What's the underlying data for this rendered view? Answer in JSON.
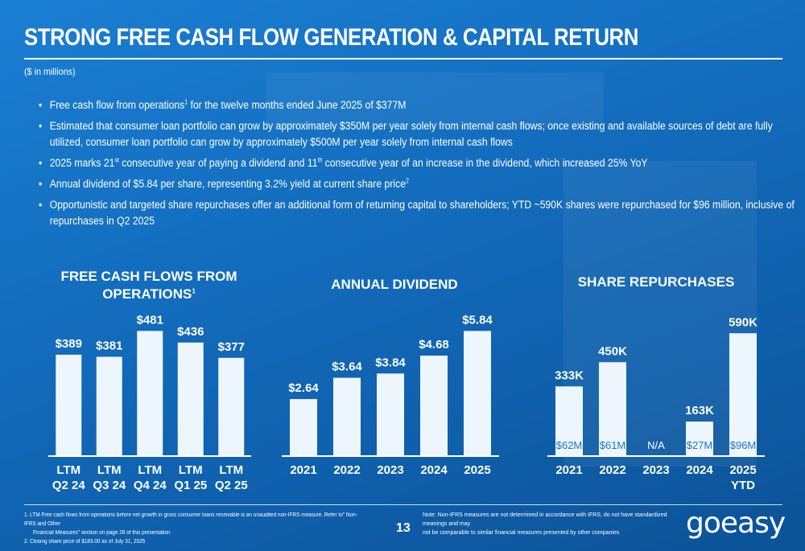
{
  "title": "STRONG FREE CASH FLOW GENERATION & CAPITAL RETURN",
  "subtitle": "($ in millions)",
  "bullets": [
    {
      "text": "Free cash flow from operations",
      "sup": "1",
      "tail": " for the twelve months ended June 2025 of $377M"
    },
    {
      "line1": "Estimated that consumer loan portfolio can grow by approximately $350M per year solely from internal cash flows; once existing and available sources of debt are fully",
      "line2": "utilized, consumer loan portfolio can grow by approximately $500M per year solely from internal cash flows"
    },
    {
      "p1": "2025 marks 21",
      "s1": "st",
      "p2": " consecutive year of paying a dividend and 11",
      "s2": "th",
      "p3": " consecutive year of an increase in the dividend, which increased 25% YoY"
    },
    {
      "text": "Annual dividend of $5.84 per share, representing 3.2% yield at current share price",
      "sup": "2"
    },
    {
      "line1": "Opportunistic and targeted share repurchases offer an additional form of returning capital to shareholders; YTD ~590K shares were repurchased for $96 million, inclusive of",
      "line2": "repurchases in Q2 2025"
    }
  ],
  "chart_data": [
    {
      "type": "bar",
      "title_line1": "FREE CASH FLOWS FROM",
      "title_line2": "OPERATIONS",
      "title_sup": "1",
      "categories": [
        [
          "LTM",
          "Q2 24"
        ],
        [
          "LTM",
          "Q3 24"
        ],
        [
          "LTM",
          "Q4 24"
        ],
        [
          "LTM",
          "Q1 25"
        ],
        [
          "LTM",
          "Q2 25"
        ]
      ],
      "values": [
        389,
        381,
        481,
        436,
        377
      ],
      "labels": [
        "$389",
        "$381",
        "$481",
        "$436",
        "$377"
      ],
      "ylim": [
        0,
        560
      ]
    },
    {
      "type": "bar",
      "title_line1": "ANNUAL DIVIDEND",
      "categories": [
        [
          "2021"
        ],
        [
          "2022"
        ],
        [
          "2023"
        ],
        [
          "2024"
        ],
        [
          "2025"
        ]
      ],
      "values": [
        2.64,
        3.64,
        3.84,
        4.68,
        5.84
      ],
      "labels": [
        "$2.64",
        "$3.64",
        "$3.84",
        "$4.68",
        "$5.84"
      ],
      "ylim": [
        0,
        6.8
      ]
    },
    {
      "type": "bar",
      "title_line1": "SHARE REPURCHASES",
      "categories": [
        [
          "2021"
        ],
        [
          "2022"
        ],
        [
          "2023"
        ],
        [
          "2024"
        ],
        [
          "2025",
          "YTD"
        ]
      ],
      "values": [
        333,
        450,
        0,
        163,
        590
      ],
      "labels": [
        "333K",
        "450K",
        "",
        "163K",
        "590K"
      ],
      "inner_labels": [
        "$62M",
        "$61M",
        "N/A",
        "$27M",
        "$96M"
      ],
      "ylim": [
        0,
        700
      ]
    }
  ],
  "footnotes": {
    "f1_line1": "1.   LTM Free cash flows from operations before net growth in gross consumer loans receivable is an unaudited non-IFRS measure. Refer to\" Non-IFRS and Other",
    "f1_line2": "Financial Measures\" section on page 28 of this presentation",
    "f2": "2.   Closing share price of $183.00 as of July 31, 2025"
  },
  "note": {
    "line1": "Note: Non-IFRS measures are not determined in accordance with IFRS, do not have standardized meanings and may",
    "line2": "not be comparable to similar financial measures presented by other companies"
  },
  "page_number": "13",
  "logo": "goeasy",
  "colors": {
    "background": "#1470c2",
    "bar": "#eef6fd",
    "inner_label": "#1b75c9"
  }
}
